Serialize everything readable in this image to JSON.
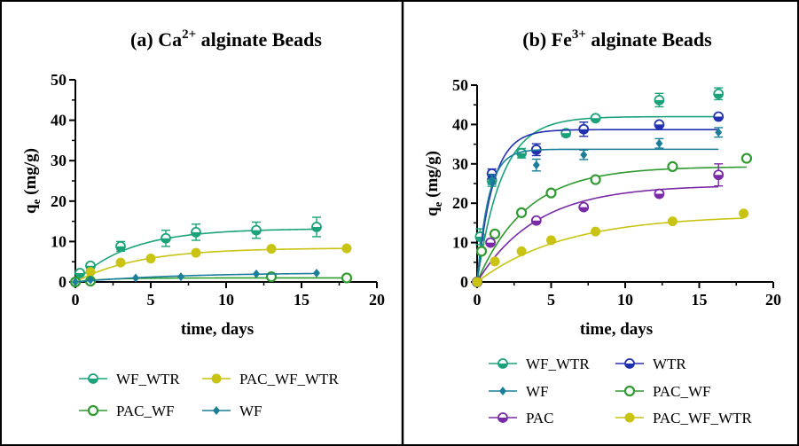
{
  "chart_data": [
    {
      "type": "scatter",
      "panel_label": "(a) Ca",
      "ion_charge": "2+",
      "panel_label_rest": "alginate Beads",
      "xlabel": "time, days",
      "ylabel_main": "q",
      "ylabel_sub": "e",
      "ylabel_unit": "(mg/g)",
      "xlim": [
        0,
        20
      ],
      "ylim": [
        0,
        50
      ],
      "x_ticks": [
        "0",
        "5",
        "10",
        "15",
        "20"
      ],
      "y_ticks": [
        "0",
        "10",
        "20",
        "30",
        "40",
        "50"
      ],
      "grid": false,
      "legend_placement": "bottom",
      "series": [
        {
          "name": "WF_WTR",
          "color": "#1aa37a",
          "marker": "half-circle",
          "x": [
            0,
            0.3,
            1,
            3,
            6,
            8,
            12,
            16
          ],
          "y": [
            0,
            2.2,
            4,
            8.8,
            10.8,
            12.3,
            12.8,
            13.6
          ],
          "err": [
            0,
            0.5,
            0.6,
            1.2,
            2,
            2,
            2,
            2.4
          ],
          "fit_max": 13.2,
          "fit_k": 0.28,
          "fit_end": 16
        },
        {
          "name": "PAC_WF_WTR",
          "color": "#c9c413",
          "marker": "filled-circle",
          "x": [
            0,
            1,
            3,
            5,
            8,
            13,
            18
          ],
          "y": [
            0,
            2.5,
            4.8,
            5.8,
            7.2,
            8.2,
            8.3
          ],
          "err": [],
          "fit_max": 8.4,
          "fit_k": 0.24,
          "fit_end": 18
        },
        {
          "name": "PAC_WF",
          "color": "#2f9a2f",
          "marker": "open-circle",
          "x": [
            0,
            1,
            13,
            18
          ],
          "y": [
            0,
            0.2,
            1.3,
            1
          ],
          "err": [],
          "fit_max": 1,
          "fit_k": 0.5,
          "fit_end": 18
        },
        {
          "name": "WF",
          "color": "#1b7f9b",
          "marker": "diamond",
          "x": [
            0,
            1,
            4,
            7,
            12,
            16
          ],
          "y": [
            0,
            0.5,
            1,
            1.3,
            2,
            2.2
          ],
          "err": [],
          "fit_max": 2.3,
          "fit_k": 0.15,
          "fit_end": 16
        }
      ],
      "legend": [
        {
          "name": "WF_WTR",
          "color": "#1aa37a",
          "marker": "half-circle"
        },
        {
          "name": "PAC_WF_WTR",
          "color": "#c9c413",
          "marker": "filled-circle"
        },
        {
          "name": "PAC_WF",
          "color": "#2f9a2f",
          "marker": "open-circle"
        },
        {
          "name": "WF",
          "color": "#1b7f9b",
          "marker": "diamond"
        }
      ]
    },
    {
      "type": "scatter",
      "panel_label": "(b) Fe",
      "ion_charge": "3+",
      "panel_label_rest": "alginate Beads",
      "xlabel": "time, days",
      "ylabel_main": "q",
      "ylabel_sub": "e",
      "ylabel_unit": "(mg/g)",
      "xlim": [
        0,
        20
      ],
      "ylim": [
        0,
        50
      ],
      "x_ticks": [
        "0",
        "5",
        "10",
        "15",
        "20"
      ],
      "y_ticks": [
        "0",
        "10",
        "20",
        "30",
        "40",
        "50"
      ],
      "grid": false,
      "legend_placement": "bottom",
      "series": [
        {
          "name": "WF_WTR",
          "color": "#1aa37a",
          "marker": "half-circle",
          "x": [
            0,
            0.2,
            1,
            3,
            6,
            8,
            12.3,
            16.3
          ],
          "y": [
            0,
            11.5,
            25.8,
            32.7,
            37.8,
            41.6,
            46.2,
            47.8
          ],
          "err": [
            0,
            2,
            1.5,
            1.2,
            0.8,
            0.6,
            1.7,
            1.5
          ],
          "fit_max": 42,
          "fit_k": 0.6,
          "fit_end": 16.3
        },
        {
          "name": "WTR",
          "color": "#2231b0",
          "marker": "half-circle",
          "x": [
            0,
            1,
            4,
            7.2,
            12.3,
            16.3
          ],
          "y": [
            0,
            27.5,
            33.6,
            38.8,
            40,
            42
          ],
          "err": [
            0,
            1.2,
            1.5,
            1.8,
            0,
            0
          ],
          "fit_max": 38.7,
          "fit_k": 0.95,
          "fit_end": 16.3
        },
        {
          "name": "WF",
          "color": "#1b7f9b",
          "marker": "diamond",
          "x": [
            0,
            1,
            4,
            7.2,
            12.3,
            16.3
          ],
          "y": [
            0,
            26,
            29.7,
            32.3,
            35.2,
            38
          ],
          "err": [
            0,
            1.2,
            1.5,
            1.2,
            1.2,
            1.2
          ],
          "fit_max": 33.7,
          "fit_k": 1.3,
          "fit_end": 16.3
        },
        {
          "name": "PAC_WF",
          "color": "#2f9a2f",
          "marker": "open-circle",
          "x": [
            0,
            0.3,
            1.2,
            3,
            5,
            8,
            13.2,
            18.2
          ],
          "y": [
            0,
            7.8,
            12.2,
            17.6,
            22.6,
            26,
            29.3,
            31.4
          ],
          "err": [],
          "fit_max": 29.3,
          "fit_k": 0.3,
          "fit_end": 18.2
        },
        {
          "name": "PAC",
          "color": "#7a2aa7",
          "marker": "half-circle",
          "x": [
            0,
            0.9,
            4,
            7.2,
            12.3,
            16.3
          ],
          "y": [
            0,
            10,
            15.6,
            19,
            22.4,
            27.2
          ],
          "err": [
            0,
            0,
            0,
            0,
            0,
            2.8
          ],
          "fit_max": 24.6,
          "fit_k": 0.25,
          "fit_end": 16.3
        },
        {
          "name": "PAC_WF_WTR",
          "color": "#c9c413",
          "marker": "filled-circle",
          "x": [
            0,
            1.2,
            3,
            5,
            8,
            13.2,
            18
          ],
          "y": [
            0,
            5.2,
            7.8,
            10.6,
            12.8,
            15.4,
            17.4
          ],
          "err": [],
          "fit_max": 17,
          "fit_k": 0.17,
          "fit_end": 18
        }
      ],
      "legend": [
        {
          "name": "WF_WTR",
          "color": "#1aa37a",
          "marker": "half-circle"
        },
        {
          "name": "WTR",
          "color": "#2231b0",
          "marker": "half-circle"
        },
        {
          "name": "WF",
          "color": "#1b7f9b",
          "marker": "diamond"
        },
        {
          "name": "PAC_WF",
          "color": "#2f9a2f",
          "marker": "open-circle"
        },
        {
          "name": "PAC",
          "color": "#7a2aa7",
          "marker": "half-circle"
        },
        {
          "name": "PAC_WF_WTR",
          "color": "#c9c413",
          "marker": "filled-circle"
        }
      ]
    }
  ]
}
